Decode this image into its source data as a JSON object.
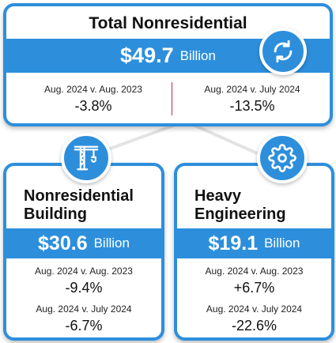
{
  "total": {
    "title": "Total Nonresidential",
    "amount": "$49.7",
    "unit": "Billion",
    "icon": "refresh-icon",
    "yoy_label": "Aug. 2024 v. Aug. 2023",
    "yoy_value": "-3.8%",
    "mom_label": "Aug. 2024 v. July 2024",
    "mom_value": "-13.5%"
  },
  "building": {
    "title_line1": "Nonresidential",
    "title_line2": "Building",
    "amount": "$30.6",
    "unit": "Billion",
    "icon": "crane-icon",
    "yoy_label": "Aug. 2024 v. Aug. 2023",
    "yoy_value": "-9.4%",
    "mom_label": "Aug. 2024 v. July 2024",
    "mom_value": "-6.7%"
  },
  "engineering": {
    "title_line1": "Heavy",
    "title_line2": "Engineering",
    "amount": "$19.1",
    "unit": "Billion",
    "icon": "gear-icon",
    "yoy_label": "Aug. 2024 v. Aug. 2023",
    "yoy_value": "+6.7%",
    "mom_label": "Aug. 2024 v. July 2024",
    "mom_value": "-22.6%"
  },
  "colors": {
    "accent": "#2d8fdc",
    "divider": "#c82a3e",
    "connector": "#e3e3e3"
  }
}
